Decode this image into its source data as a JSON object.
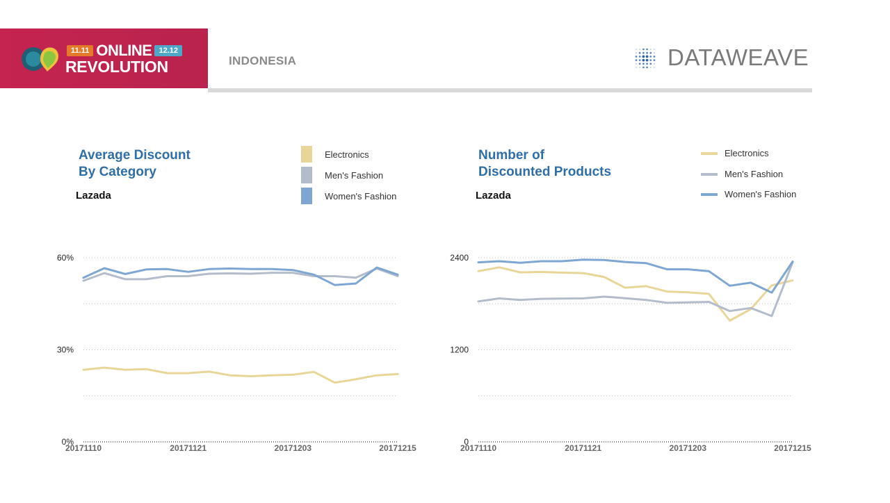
{
  "header": {
    "banner_date_left": "11.11",
    "banner_title_1": "ONLINE",
    "banner_date_right": "12.12",
    "banner_title_2": "REVOLUTION",
    "country": "INDONESIA",
    "brand": "DATAWEAVE"
  },
  "colors": {
    "electronics": "#e8d699",
    "mens_fashion": "#b3bccb",
    "womens_fashion": "#7ea6d3",
    "title": "#2f6ea7",
    "banner": "#c4244f"
  },
  "chart_data": [
    {
      "type": "line",
      "title": "Average Discount By Category",
      "title_lines": [
        "Average Discount",
        "By Category"
      ],
      "subtitle": "Lazada",
      "legend_style": "box",
      "legend_position": "top-right",
      "y_unit": "%",
      "ylim": [
        0,
        60
      ],
      "yticks": [
        0,
        30,
        60
      ],
      "ytick_labels": [
        "0%",
        "30%",
        "60%"
      ],
      "grid": true,
      "xtick_labels": [
        "20171110",
        "20171121",
        "20171203",
        "20171215"
      ],
      "x": [
        "20171110",
        "20171112",
        "20171114",
        "20171116",
        "20171119",
        "20171121",
        "20171123",
        "20171126",
        "20171128",
        "20171130",
        "20171203",
        "20171205",
        "20171207",
        "20171209",
        "20171212",
        "20171215"
      ],
      "series": [
        {
          "name": "Electronics",
          "color": "#e8d699",
          "values": [
            23.5,
            24.2,
            23.5,
            23.7,
            22.4,
            22.4,
            22.9,
            21.7,
            21.4,
            21.7,
            21.9,
            22.8,
            19.3,
            20.4,
            21.7,
            22.1
          ]
        },
        {
          "name": "Men's Fashion",
          "color": "#b3bccb",
          "values": [
            52.5,
            55.0,
            53.0,
            53.0,
            54.0,
            54.0,
            54.8,
            54.9,
            54.8,
            55.1,
            55.1,
            54.0,
            54.0,
            53.5,
            56.5,
            54.0
          ]
        },
        {
          "name": "Women's Fashion",
          "color": "#7ea6d3",
          "values": [
            53.5,
            56.6,
            54.7,
            56.2,
            56.3,
            55.4,
            56.3,
            56.5,
            56.3,
            56.3,
            56.0,
            54.5,
            51.1,
            51.6,
            56.8,
            54.5
          ]
        }
      ]
    },
    {
      "type": "line",
      "title": "Number of Discounted Products",
      "title_lines": [
        "Number of",
        "Discounted Products"
      ],
      "subtitle": "Lazada",
      "legend_style": "line",
      "legend_position": "top-right",
      "ylim": [
        0,
        2400
      ],
      "yticks": [
        0,
        1200,
        2400
      ],
      "ytick_labels": [
        "0",
        "1200",
        "2400"
      ],
      "grid": true,
      "xtick_labels": [
        "20171110",
        "20171121",
        "20171203",
        "20171215"
      ],
      "x": [
        "20171110",
        "20171112",
        "20171114",
        "20171116",
        "20171119",
        "20171121",
        "20171123",
        "20171126",
        "20171128",
        "20171130",
        "20171203",
        "20171205",
        "20171207",
        "20171209",
        "20171212",
        "20171215"
      ],
      "series": [
        {
          "name": "Electronics",
          "color": "#e8d699",
          "values": [
            2225,
            2275,
            2210,
            2215,
            2205,
            2200,
            2150,
            2010,
            2030,
            1960,
            1950,
            1930,
            1580,
            1730,
            2040,
            2105
          ]
        },
        {
          "name": "Men's Fashion",
          "color": "#b3bccb",
          "values": [
            1830,
            1870,
            1850,
            1865,
            1868,
            1870,
            1893,
            1873,
            1850,
            1812,
            1818,
            1825,
            1705,
            1745,
            1640,
            2340
          ]
        },
        {
          "name": "Women's Fashion",
          "color": "#7ea6d3",
          "values": [
            2340,
            2355,
            2335,
            2355,
            2355,
            2375,
            2370,
            2345,
            2330,
            2250,
            2250,
            2225,
            2035,
            2075,
            1945,
            2350
          ]
        }
      ]
    }
  ]
}
